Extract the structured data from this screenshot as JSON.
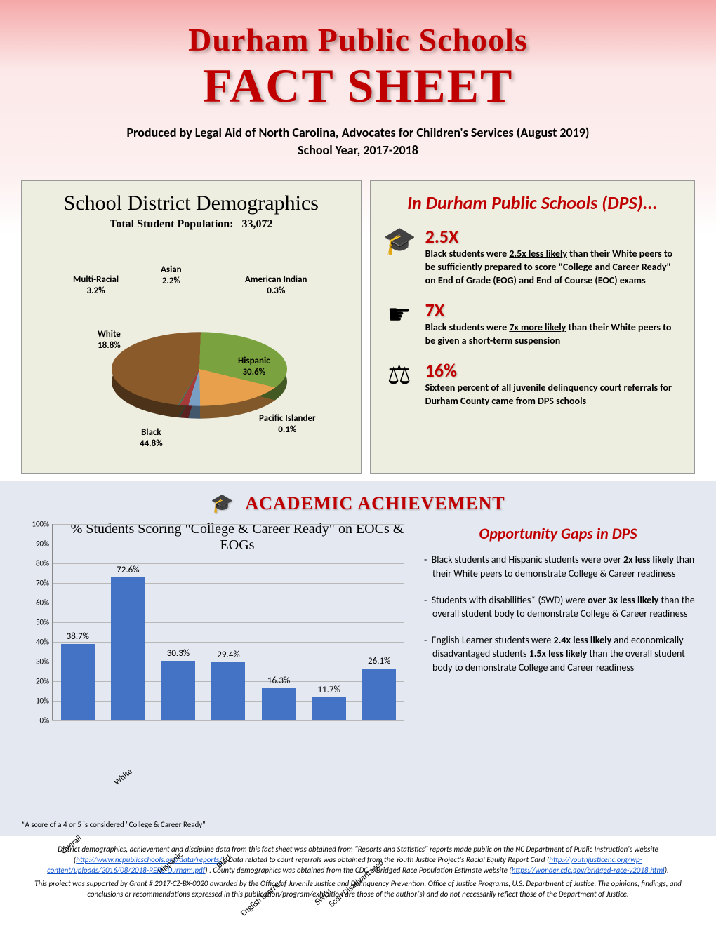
{
  "header": {
    "title_line1": "Durham Public Schools",
    "title_line2": "FACT SHEET",
    "subtitle_line1": "Produced by Legal Aid of North Carolina, Advocates for Children's Services (August 2019)",
    "subtitle_line2": "School Year, 2017-2018"
  },
  "demographics": {
    "title": "School District Demographics",
    "subtitle_label": "Total Student Population:",
    "population": "33,072",
    "pie": {
      "type": "pie",
      "slices": [
        {
          "label": "Black",
          "pct": "44.8%",
          "value": 44.8,
          "color": "#8b5a2b"
        },
        {
          "label": "Hispanic",
          "pct": "30.6%",
          "value": 30.6,
          "color": "#7aa23f"
        },
        {
          "label": "White",
          "pct": "18.8%",
          "value": 18.8,
          "color": "#e8a04c"
        },
        {
          "label": "Multi-Racial",
          "pct": "3.2%",
          "value": 3.2,
          "color": "#7a9fc4"
        },
        {
          "label": "Asian",
          "pct": "2.2%",
          "value": 2.2,
          "color": "#a53a3a"
        },
        {
          "label": "American Indian",
          "pct": "0.3%",
          "value": 0.3,
          "color": "#527a3f"
        },
        {
          "label": "Pacific Islander",
          "pct": "0.1%",
          "value": 0.1,
          "color": "#3a6aa0"
        }
      ],
      "bg_tilt_deg": 10
    }
  },
  "dps_stats": {
    "title": "In Durham Public Schools (DPS)...",
    "items": [
      {
        "big": "2.5X",
        "icon": "grad-cap-icon",
        "text_html": "Black students were <u>2.5x less likely</u> than their White peers to be sufficiently prepared to score \"College and Career Ready\" on End of Grade (EOG) and End of Course (EOC) exams"
      },
      {
        "big": "7X",
        "icon": "pointing-hand-icon",
        "text_html": "Black students were <u>7x more likely</u> than their White peers to be given a short-term suspension"
      },
      {
        "big": "16%",
        "icon": "gavel-icon",
        "text_html": "Sixteen percent of all juvenile delinquency court referrals for Durham County came from DPS schools"
      }
    ]
  },
  "academic": {
    "title": "ACADEMIC ACHIEVEMENT",
    "chart": {
      "type": "bar",
      "title": "% Students Scoring \"College & Career Ready\" on EOCs & EOGs",
      "ylim": [
        0,
        100
      ],
      "ytick_step": 10,
      "bar_color": "#4472c4",
      "grid_color": "#b8b8b8",
      "bars": [
        {
          "label": "Overall",
          "value": 38.7,
          "label_text": "38.7%"
        },
        {
          "label": "White",
          "value": 72.6,
          "label_text": "72.6%"
        },
        {
          "label": "Hispanic",
          "value": 30.3,
          "label_text": "30.3%"
        },
        {
          "label": "Black",
          "value": 29.4,
          "label_text": "29.4%"
        },
        {
          "label": "English Learner",
          "value": 16.3,
          "label_text": "16.3%"
        },
        {
          "label": "SWD*",
          "value": 11.7,
          "label_text": "11.7%"
        },
        {
          "label": "Econ Disadvantaged",
          "value": 26.1,
          "label_text": "26.1%"
        }
      ],
      "footnote": "*A score of a 4 or 5 is considered \"College & Career Ready\""
    },
    "gaps": {
      "title": "Opportunity Gaps in DPS",
      "items": [
        "Black students and Hispanic students were over <b>2x less likely</b> than their White peers to demonstrate College & Career readiness",
        "Students with disabilities* (SWD) were <b>over 3x less likely</b> than the overall student body to demonstrate College & Career readiness",
        "English Learner students were <b>2.4x less likely</b> and economically disadvantaged students <b>1.5x less likely</b> than the overall student body to demonstrate College and Career readiness"
      ]
    }
  },
  "sources": {
    "text1": "District demographics, achievement and discipline data from this fact sheet was obtained from \"Reports and Statistics\" reports made public on the NC Department of Public Instruction's website (",
    "link1": "http://www.ncpublicschools.org/data/reports/",
    "text2": ").  Data related to court referrals was obtained from the Youth Justice Project's Racial Equity Report Card (",
    "link2": "http://youthjusticenc.org/wp-content/uploads/2016/08/2018-RERC-Durham.pdf",
    "text3": ") . County demographics was obtained from the CDC 's Bridged Race Population Estimate website (",
    "link3": "https://wonder.cdc.gov/bridged-race-v2018.html",
    "text4": ").",
    "disclaimer": "This project was supported by Grant # 2017-CZ-BX-0020 awarded by the Office of Juvenile Justice and Delinquency Prevention, Office of Justice Programs, U.S. Department of Justice. The opinions, findings, and conclusions or recommendations expressed in this publication/program/exhibition are those of the author(s) and do not necessarily reflect those of the Department of Justice."
  }
}
